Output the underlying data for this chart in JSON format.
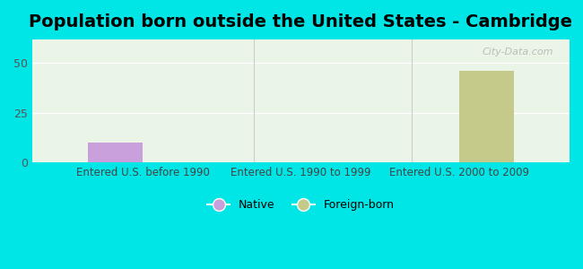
{
  "title": "Population born outside the United States - Cambridge",
  "categories": [
    "Entered U.S. before 1990",
    "Entered U.S. 1990 to 1999",
    "Entered U.S. 2000 to 2009"
  ],
  "native_values": [
    10,
    0,
    0
  ],
  "foreign_values": [
    0,
    0,
    46
  ],
  "native_color": "#c9a0dc",
  "foreign_color": "#c5c98a",
  "background_color": "#00e5e5",
  "plot_bg_color": "#eaf5e8",
  "ylim": [
    0,
    62
  ],
  "yticks": [
    0,
    25,
    50
  ],
  "bar_width": 0.35,
  "title_fontsize": 14,
  "legend_labels": [
    "Native",
    "Foreign-born"
  ],
  "watermark": "City-Data.com"
}
